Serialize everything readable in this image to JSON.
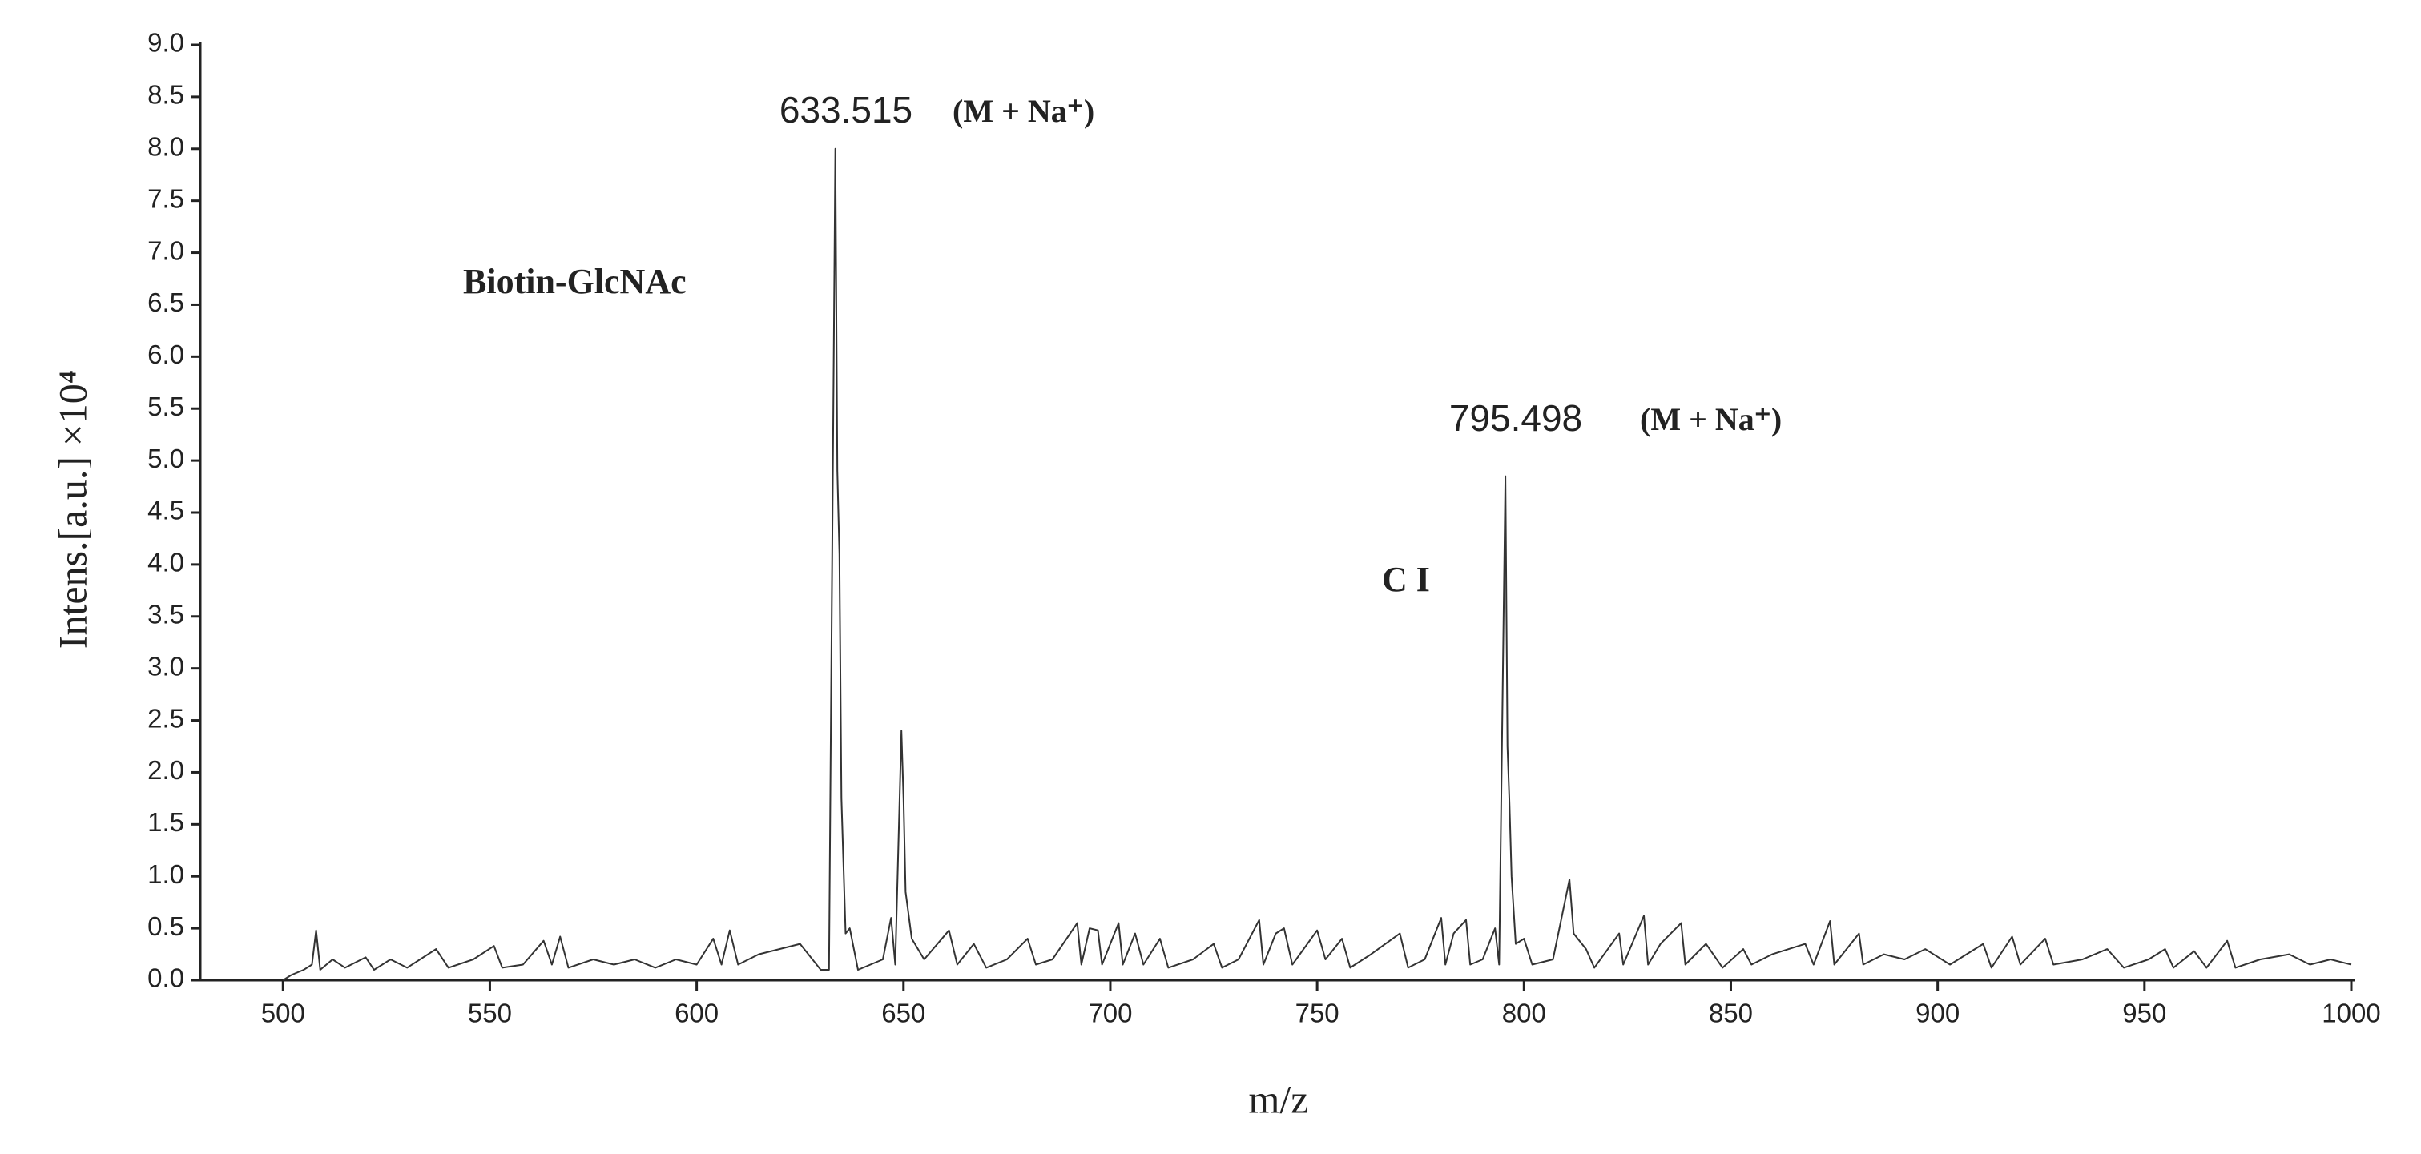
{
  "chart_data": {
    "type": "line",
    "x_label": "m/z",
    "y_label": "Intens.[a.u.] ×10⁴",
    "annotations": [
      {
        "text": "633.515"
      },
      {
        "text": "(M + Na⁺)"
      },
      {
        "text": "Biotin-GlcNAc"
      },
      {
        "text": "795.498"
      },
      {
        "text": "(M + Na⁺)"
      },
      {
        "text": "C I"
      }
    ],
    "xlim": [
      480,
      1000
    ],
    "ylim": [
      0,
      9
    ],
    "xticks": [
      500,
      550,
      600,
      650,
      700,
      750,
      800,
      850,
      900,
      950,
      1000
    ],
    "yticks": [
      {
        "value": 0,
        "label": "0.0"
      },
      {
        "value": 0.5,
        "label": "0.5"
      },
      {
        "value": 1,
        "label": "1.0"
      },
      {
        "value": 1.5,
        "label": "1.5"
      },
      {
        "value": 2,
        "label": "2.0"
      },
      {
        "value": 2.5,
        "label": "2.5"
      },
      {
        "value": 3,
        "label": "3.0"
      },
      {
        "value": 3.5,
        "label": "3.5"
      },
      {
        "value": 4,
        "label": "4.0"
      },
      {
        "value": 4.5,
        "label": "4.5"
      },
      {
        "value": 5,
        "label": "5.0"
      },
      {
        "value": 5.5,
        "label": "5.5"
      },
      {
        "value": 6,
        "label": "6.0"
      },
      {
        "value": 6.5,
        "label": "6.5"
      },
      {
        "value": 7,
        "label": "7.0"
      },
      {
        "value": 7.5,
        "label": "7.5"
      },
      {
        "value": 8,
        "label": "8.0"
      },
      {
        "value": 8.5,
        "label": "8.5"
      },
      {
        "value": 9,
        "label": "9.0"
      }
    ],
    "series": [
      {
        "color": "#333333",
        "x": [
          500,
          502,
          505,
          507,
          508,
          509,
          512,
          515,
          520,
          522,
          526,
          530,
          537,
          540,
          546,
          551,
          553,
          558,
          563,
          565,
          567,
          569,
          575,
          580,
          585,
          590,
          595,
          600,
          604,
          606,
          608,
          610,
          615,
          620,
          625,
          630,
          632,
          633.515,
          634,
          634.5,
          635,
          636,
          637,
          639,
          645,
          647,
          648,
          649.5,
          650,
          650.5,
          651,
          652,
          655,
          661,
          663,
          667,
          670,
          675,
          680,
          682,
          686,
          692,
          693,
          695,
          697,
          698,
          702,
          703,
          706,
          708,
          712,
          714,
          720,
          725,
          727,
          731,
          736,
          737,
          740,
          742,
          744,
          750,
          752,
          756,
          758,
          763,
          770,
          772,
          776,
          780,
          781,
          783,
          786,
          787,
          790,
          793,
          794,
          795.498,
          796,
          796.5,
          797,
          798,
          800,
          802,
          807,
          811,
          812,
          813,
          815,
          817,
          823,
          824,
          829,
          830,
          833,
          838,
          839,
          844,
          848,
          853,
          855,
          860,
          868,
          870,
          874,
          875,
          881,
          882,
          887,
          892,
          897,
          903,
          911,
          913,
          918,
          920,
          926,
          928,
          935,
          941,
          945,
          951,
          955,
          957,
          962,
          965,
          970,
          972,
          978,
          985,
          990,
          995,
          1000
        ],
        "values": [
          0.0,
          0.05,
          0.1,
          0.15,
          0.48,
          0.1,
          0.2,
          0.12,
          0.22,
          0.1,
          0.2,
          0.12,
          0.3,
          0.12,
          0.2,
          0.33,
          0.12,
          0.15,
          0.38,
          0.15,
          0.42,
          0.12,
          0.2,
          0.15,
          0.2,
          0.12,
          0.2,
          0.15,
          0.4,
          0.15,
          0.48,
          0.15,
          0.25,
          0.3,
          0.35,
          0.1,
          0.1,
          8.0,
          4.9,
          4.1,
          1.75,
          0.45,
          0.5,
          0.1,
          0.2,
          0.6,
          0.15,
          2.4,
          1.75,
          0.85,
          0.7,
          0.4,
          0.2,
          0.48,
          0.15,
          0.35,
          0.12,
          0.2,
          0.4,
          0.15,
          0.2,
          0.55,
          0.15,
          0.5,
          0.48,
          0.15,
          0.55,
          0.15,
          0.45,
          0.15,
          0.4,
          0.12,
          0.2,
          0.35,
          0.12,
          0.2,
          0.58,
          0.15,
          0.45,
          0.5,
          0.15,
          0.48,
          0.2,
          0.4,
          0.12,
          0.25,
          0.45,
          0.12,
          0.2,
          0.6,
          0.15,
          0.45,
          0.58,
          0.15,
          0.2,
          0.5,
          0.15,
          4.85,
          2.25,
          1.7,
          1.0,
          0.35,
          0.4,
          0.15,
          0.2,
          0.97,
          0.45,
          0.4,
          0.3,
          0.12,
          0.45,
          0.15,
          0.62,
          0.15,
          0.35,
          0.55,
          0.15,
          0.35,
          0.12,
          0.3,
          0.15,
          0.25,
          0.35,
          0.15,
          0.57,
          0.15,
          0.45,
          0.15,
          0.25,
          0.2,
          0.3,
          0.15,
          0.35,
          0.12,
          0.42,
          0.15,
          0.4,
          0.15,
          0.2,
          0.3,
          0.12,
          0.2,
          0.3,
          0.12,
          0.28,
          0.12,
          0.38,
          0.12,
          0.2,
          0.25,
          0.15,
          0.2,
          0.15
        ]
      }
    ]
  }
}
